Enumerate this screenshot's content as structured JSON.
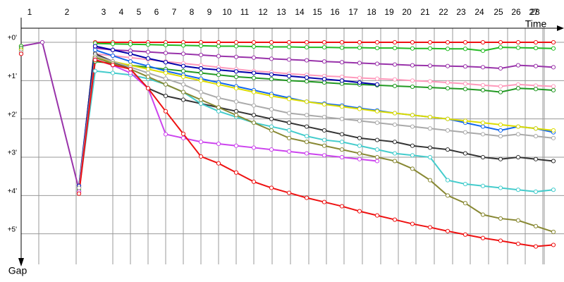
{
  "chart_data": {
    "type": "line",
    "x_label": "Time",
    "y_label": "Gap",
    "xlim": [
      0,
      770
    ],
    "ylim": [
      -0.7,
      6.0
    ],
    "y_inverted": true,
    "grid": true,
    "xticks": [
      {
        "value": 25,
        "label": "1"
      },
      {
        "value": 78,
        "label": "2"
      },
      {
        "value": 130,
        "label": "3"
      },
      {
        "value": 155,
        "label": "4"
      },
      {
        "value": 180,
        "label": "5"
      },
      {
        "value": 205,
        "label": "6"
      },
      {
        "value": 230,
        "label": "7"
      },
      {
        "value": 255,
        "label": "8"
      },
      {
        "value": 280,
        "label": "9"
      },
      {
        "value": 305,
        "label": "10"
      },
      {
        "value": 330,
        "label": "11"
      },
      {
        "value": 356,
        "label": "12"
      },
      {
        "value": 382,
        "label": "13"
      },
      {
        "value": 408,
        "label": "14"
      },
      {
        "value": 433,
        "label": "15"
      },
      {
        "value": 458,
        "label": "16"
      },
      {
        "value": 484,
        "label": "17"
      },
      {
        "value": 510,
        "label": "18"
      },
      {
        "value": 535,
        "label": "19"
      },
      {
        "value": 560,
        "label": "20"
      },
      {
        "value": 586,
        "label": "21"
      },
      {
        "value": 612,
        "label": "22"
      },
      {
        "value": 637,
        "label": "23"
      },
      {
        "value": 663,
        "label": "24"
      },
      {
        "value": 690,
        "label": "25"
      },
      {
        "value": 715,
        "label": "26"
      },
      {
        "value": 740,
        "label": "27"
      },
      {
        "value": 742,
        "label": "28"
      }
    ],
    "yticks": [
      {
        "value": 0,
        "label": "+0'"
      },
      {
        "value": 1,
        "label": "+1'"
      },
      {
        "value": 2,
        "label": "+2'"
      },
      {
        "value": 3,
        "label": "+3'"
      },
      {
        "value": 4,
        "label": "+4'"
      },
      {
        "value": 5,
        "label": "+5'"
      }
    ],
    "x": [
      0,
      30,
      82,
      105,
      130,
      155,
      180,
      205,
      230,
      255,
      280,
      305,
      330,
      355,
      380,
      405,
      430,
      455,
      480,
      505,
      530,
      555,
      580,
      605,
      630,
      655,
      680,
      705,
      730,
      755
    ],
    "series": [
      {
        "color": "#9933aa",
        "values": [
          0.1,
          0,
          3.85,
          0.15,
          0.2,
          0.22,
          0.25,
          0.28,
          0.3,
          0.33,
          0.36,
          0.38,
          0.4,
          0.43,
          0.45,
          0.47,
          0.5,
          0.52,
          0.54,
          0.56,
          0.58,
          0.6,
          0.61,
          0.62,
          0.63,
          0.65,
          0.68,
          0.6,
          0.62,
          0.65
        ]
      },
      {
        "color": "#ee1111",
        "values": [
          0.1,
          null,
          3.9,
          0,
          0,
          0,
          0,
          0,
          0,
          0,
          0,
          0,
          0,
          0,
          0,
          0,
          0,
          0,
          0,
          0,
          0,
          0,
          0,
          0,
          0,
          0,
          0,
          0,
          0,
          0
        ]
      },
      {
        "color": "#22bb22",
        "values": [
          0.1,
          null,
          3.85,
          0.03,
          0.04,
          0.05,
          0.06,
          0.07,
          0.08,
          0.09,
          0.1,
          0.1,
          0.11,
          0.12,
          0.12,
          0.13,
          0.13,
          0.14,
          0.14,
          0.15,
          0.15,
          0.16,
          0.16,
          0.17,
          0.17,
          0.22,
          0.13,
          0.14,
          0.15,
          0.16
        ]
      },
      {
        "color": "#ff99bb",
        "values": [
          0.15,
          null,
          3.8,
          0.3,
          0.35,
          0.4,
          0.45,
          0.5,
          0.55,
          0.6,
          0.65,
          0.7,
          0.75,
          0.78,
          0.82,
          0.85,
          0.88,
          0.9,
          0.93,
          0.95,
          0.97,
          1.0,
          1.02,
          1.05,
          1.08,
          1.12,
          1.15,
          1.1,
          1.13,
          1.15
        ]
      },
      {
        "color": "#229922",
        "values": [
          0.15,
          null,
          3.8,
          0.5,
          0.55,
          0.6,
          0.65,
          0.7,
          0.75,
          0.8,
          0.85,
          0.9,
          0.93,
          0.96,
          1.0,
          1.02,
          1.05,
          1.08,
          1.1,
          1.12,
          1.14,
          1.16,
          1.18,
          1.2,
          1.22,
          1.25,
          1.3,
          1.2,
          1.22,
          1.25
        ]
      },
      {
        "color": "#1166ee",
        "values": [
          0.2,
          null,
          3.75,
          0.2,
          0.35,
          0.5,
          0.62,
          0.75,
          0.85,
          0.95,
          1.05,
          1.15,
          1.25,
          1.35,
          1.45,
          1.55,
          1.6,
          1.65,
          1.72,
          1.78,
          1.85,
          1.9,
          1.95,
          2.0,
          2.1,
          2.2,
          2.3,
          2.2,
          2.25,
          2.35
        ]
      },
      {
        "color": "#0000aa",
        "values": [
          0.2,
          null,
          3.75,
          0.1,
          0.2,
          0.3,
          0.42,
          0.52,
          0.62,
          0.68,
          0.72,
          0.76,
          0.8,
          0.84,
          0.88,
          0.92,
          0.96,
          1.0,
          1.05,
          1.1,
          null,
          null,
          null,
          null,
          null,
          null,
          null,
          null,
          null,
          null
        ]
      },
      {
        "color": "#dddd00",
        "values": [
          0.2,
          null,
          3.8,
          0.4,
          0.5,
          0.6,
          0.7,
          0.8,
          0.9,
          1.0,
          1.1,
          1.2,
          1.3,
          1.4,
          1.48,
          1.55,
          1.62,
          1.68,
          1.74,
          1.8,
          1.85,
          1.9,
          1.95,
          2.0,
          2.05,
          2.1,
          2.15,
          2.2,
          2.25,
          2.3
        ]
      },
      {
        "color": "#333333",
        "values": [
          0.25,
          null,
          3.8,
          0.3,
          0.5,
          0.7,
          1.2,
          1.4,
          1.5,
          1.6,
          1.7,
          1.8,
          1.9,
          2.0,
          2.1,
          2.2,
          2.3,
          2.4,
          2.5,
          2.55,
          2.6,
          2.7,
          2.75,
          2.8,
          2.9,
          3.0,
          3.05,
          3.0,
          3.05,
          3.1
        ]
      },
      {
        "color": "#aaaaaa",
        "values": [
          0.25,
          null,
          3.8,
          0.35,
          0.5,
          0.65,
          0.8,
          0.95,
          1.1,
          1.3,
          1.45,
          1.55,
          1.65,
          1.75,
          1.85,
          1.9,
          1.95,
          2.0,
          2.05,
          2.1,
          2.15,
          2.2,
          2.25,
          2.3,
          2.35,
          2.4,
          2.45,
          2.4,
          2.45,
          2.5
        ]
      },
      {
        "color": "#44cccc",
        "values": [
          0.3,
          null,
          3.9,
          0.75,
          0.8,
          0.85,
          0.95,
          1.1,
          1.3,
          1.6,
          1.8,
          1.95,
          2.1,
          2.2,
          2.3,
          2.45,
          2.55,
          2.6,
          2.7,
          2.8,
          2.9,
          2.95,
          3.0,
          3.6,
          3.7,
          3.75,
          3.8,
          3.85,
          3.9,
          3.85
        ]
      },
      {
        "color": "#888833",
        "values": [
          0.3,
          null,
          3.9,
          0.4,
          0.55,
          0.7,
          0.9,
          1.1,
          1.3,
          1.5,
          1.7,
          1.9,
          2.1,
          2.3,
          2.5,
          2.6,
          2.7,
          2.8,
          2.9,
          3.0,
          3.1,
          3.3,
          3.6,
          4.0,
          4.2,
          4.5,
          4.6,
          4.65,
          4.8,
          4.95
        ]
      },
      {
        "color": "#cc44ee",
        "values": [
          0.3,
          null,
          3.9,
          0.45,
          0.6,
          0.8,
          1.2,
          2.4,
          2.5,
          2.6,
          2.65,
          2.7,
          2.75,
          2.8,
          2.85,
          2.9,
          2.95,
          3.0,
          3.05,
          3.1,
          null,
          null,
          null,
          null,
          null,
          null,
          null,
          null,
          null,
          null
        ]
      },
      {
        "color": "#ee1111",
        "values": [
          0.3,
          null,
          3.95,
          0.46,
          0.59,
          0.7,
          1.2,
          1.8,
          2.39,
          2.98,
          3.16,
          3.4,
          3.64,
          3.8,
          3.93,
          4.06,
          4.17,
          4.28,
          4.41,
          4.52,
          4.63,
          4.74,
          4.83,
          4.93,
          5.02,
          5.11,
          5.18,
          5.26,
          5.33,
          5.29
        ]
      }
    ]
  }
}
